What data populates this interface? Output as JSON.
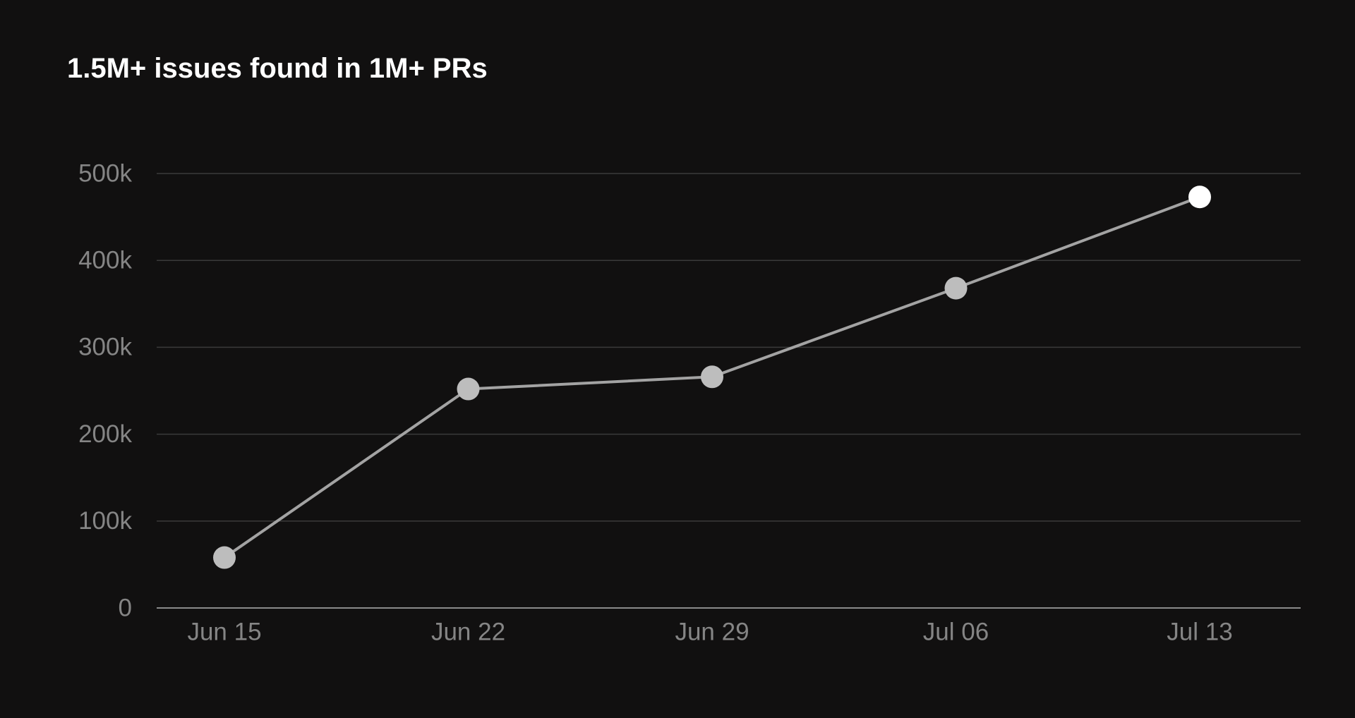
{
  "chart_data": {
    "type": "line",
    "title": "1.5M+ issues found in 1M+ PRs",
    "categories": [
      "Jun 15",
      "Jun 22",
      "Jun 29",
      "Jul 06",
      "Jul 13"
    ],
    "series": [
      {
        "color": "#a3a3a3",
        "marker_colors": [
          "#bdbdbd",
          "#bdbdbd",
          "#bdbdbd",
          "#bdbdbd",
          "#ffffff"
        ],
        "values": [
          58000,
          252000,
          266000,
          368000,
          473000
        ]
      }
    ],
    "ylim": [
      0,
      500000
    ],
    "yticks": [
      0,
      {
        "value": 100000,
        "label": "100k"
      },
      {
        "value": 200000,
        "label": "200k"
      },
      {
        "value": 300000,
        "label": "300k"
      },
      {
        "value": 400000,
        "label": "400k"
      },
      {
        "value": 500000,
        "label": "500k"
      }
    ],
    "grid": true
  }
}
